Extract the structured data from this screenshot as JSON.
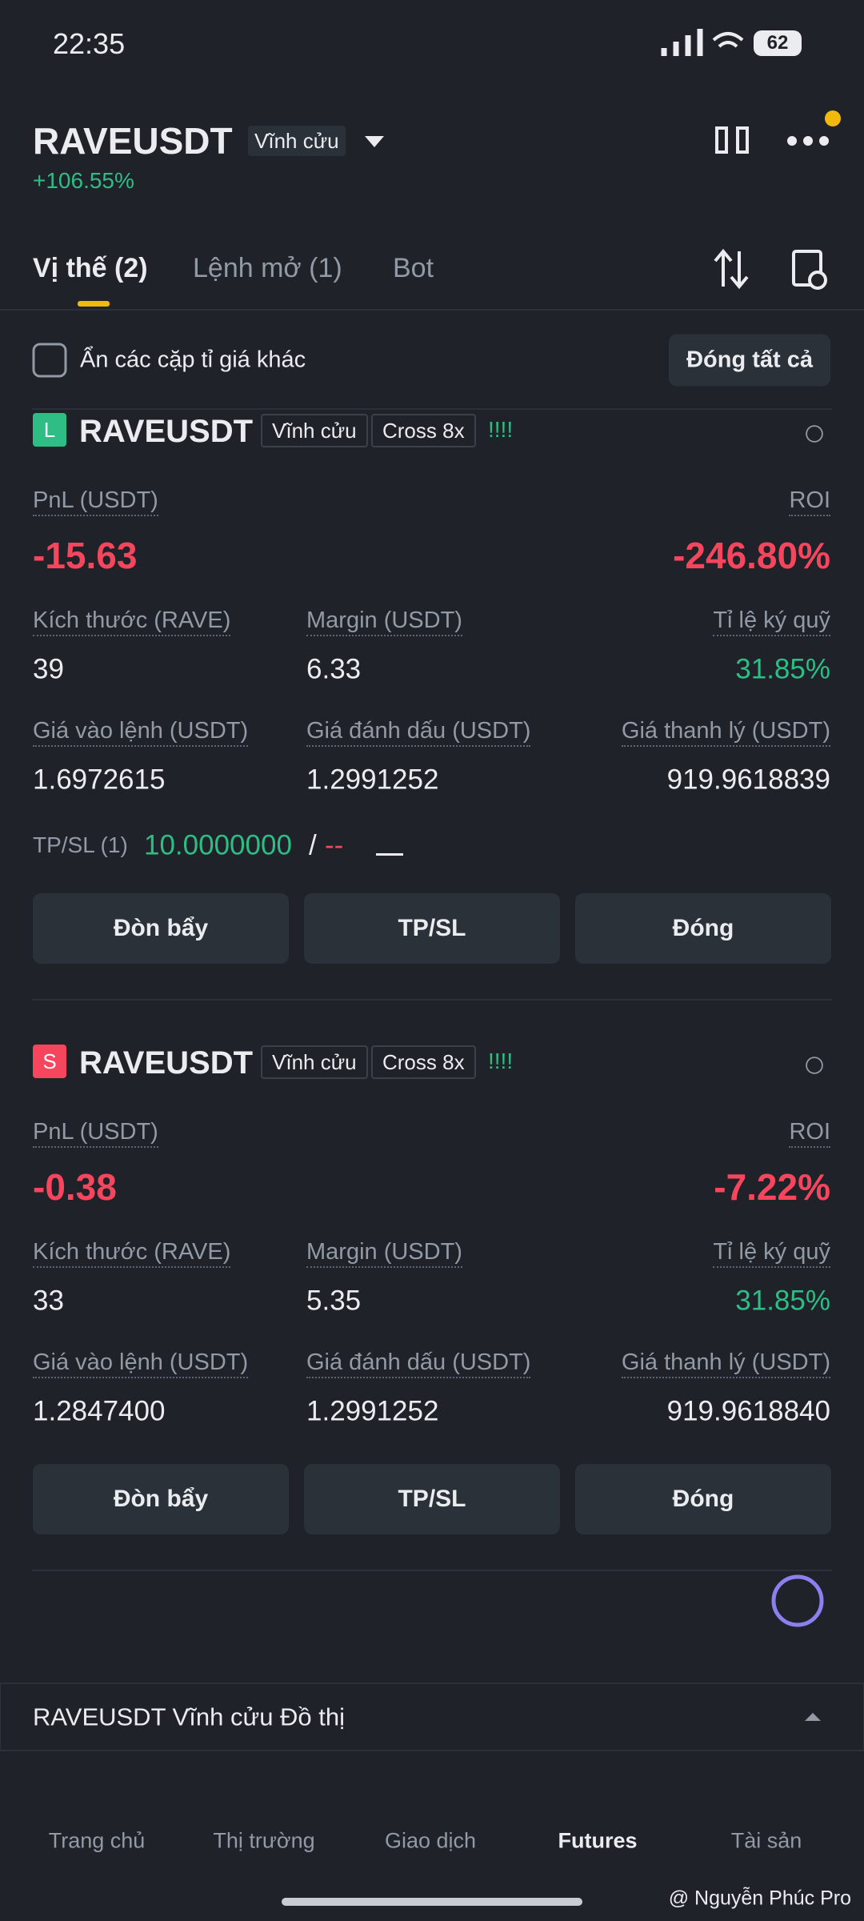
{
  "status": {
    "time": "22:35",
    "battery": "62"
  },
  "header": {
    "symbol": "RAVEUSDT",
    "badge": "Vĩnh cửu",
    "change": "+106.55%"
  },
  "tabs": [
    "Vị thế (2)",
    "Lệnh mở (1)",
    "Bot"
  ],
  "filter": {
    "checkbox_label": "Ẩn các cặp tỉ giá khác",
    "close_all": "Đóng tất cả"
  },
  "positions": [
    {
      "side": "L",
      "symbol": "RAVEUSDT",
      "tags": [
        "Vĩnh cửu",
        "Cross 8x"
      ],
      "signal": "!!!!",
      "pnl_label": "PnL (USDT)",
      "pnl": "-15.63",
      "roi_label": "ROI",
      "roi": "-246.80%",
      "fields": [
        {
          "label": "Kích thước (RAVE)",
          "value": "39"
        },
        {
          "label": "Margin (USDT)",
          "value": "6.33"
        },
        {
          "label": "Tỉ lệ ký quỹ",
          "value": "31.85%"
        },
        {
          "label": "Giá vào lệnh (USDT)",
          "value": "1.6972615"
        },
        {
          "label": "Giá đánh dấu (USDT)",
          "value": "1.2991252"
        },
        {
          "label": "Giá thanh lý (USDT)",
          "value": "919.9618839"
        }
      ],
      "tpsl": {
        "label": "TP/SL (1)",
        "tp": "10.0000000",
        "sep": "/",
        "sl": "--"
      },
      "buttons": [
        "Đòn bẩy",
        "TP/SL",
        "Đóng"
      ]
    },
    {
      "side": "S",
      "symbol": "RAVEUSDT",
      "tags": [
        "Vĩnh cửu",
        "Cross 8x"
      ],
      "signal": "!!!!",
      "pnl_label": "PnL (USDT)",
      "pnl": "-0.38",
      "roi_label": "ROI",
      "roi": "-7.22%",
      "fields": [
        {
          "label": "Kích thước (RAVE)",
          "value": "33"
        },
        {
          "label": "Margin (USDT)",
          "value": "5.35"
        },
        {
          "label": "Tỉ lệ ký quỹ",
          "value": "31.85%"
        },
        {
          "label": "Giá vào lệnh (USDT)",
          "value": "1.2847400"
        },
        {
          "label": "Giá đánh dấu (USDT)",
          "value": "1.2991252"
        },
        {
          "label": "Giá thanh lý (USDT)",
          "value": "919.9618840"
        }
      ],
      "buttons": [
        "Đòn bẩy",
        "TP/SL",
        "Đóng"
      ]
    }
  ],
  "chart_bar": "RAVEUSDT Vĩnh cửu Đồ thị",
  "nav": [
    "Trang chủ",
    "Thị trường",
    "Giao dịch",
    "Futures",
    "Tài sản"
  ],
  "watermark": "@ Nguyễn Phúc Pro"
}
